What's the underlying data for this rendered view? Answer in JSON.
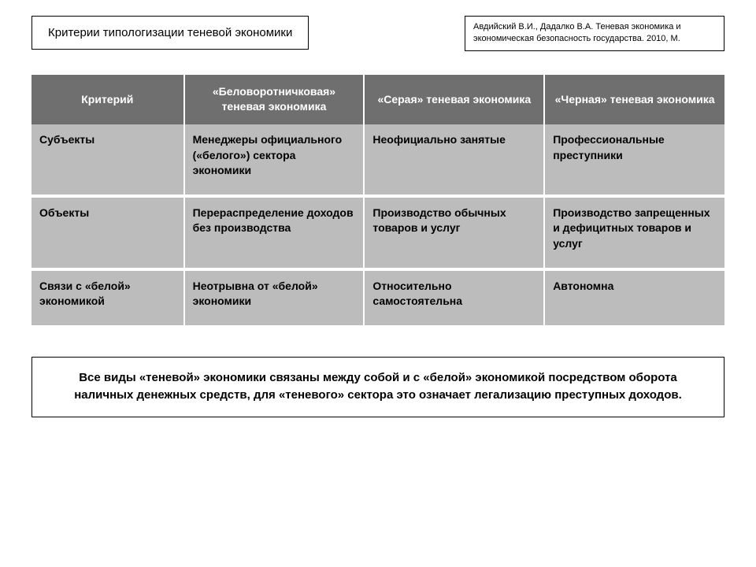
{
  "title": "Критерии типологизации теневой экономики",
  "citation": "Авдийский В.И., Дадалко В.А. Теневая экономика и экономическая безопасность государства. 2010, М.",
  "table": {
    "type": "table",
    "header_bg": "#6f6f6f",
    "header_fg": "#ffffff",
    "cell_bg": "#bcbcbc",
    "cell_fg": "#000000",
    "columns": [
      "Критерий",
      "«Беловоротничковая» теневая экономика",
      "«Серая» теневая экономика",
      "«Черная» теневая экономика"
    ],
    "rows": [
      [
        "Субъекты",
        "Менеджеры официального («белого») сектора экономики",
        "Неофициально занятые",
        "Профессиональные преступники"
      ],
      [
        "Объекты",
        "Перераспределение доходов без производства",
        "Производство обычных товаров и услуг",
        "Производство запрещенных и дефицитных товаров и услуг"
      ],
      [
        "Связи с «белой» экономикой",
        "Неотрывна от «белой» экономики",
        "Относительно самостоятельна",
        "Автономна"
      ]
    ]
  },
  "footer": "Все виды «теневой» экономики связаны между собой и с «белой» экономикой посредством оборота наличных денежных средств, для «теневого» сектора это означает легализацию преступных доходов."
}
